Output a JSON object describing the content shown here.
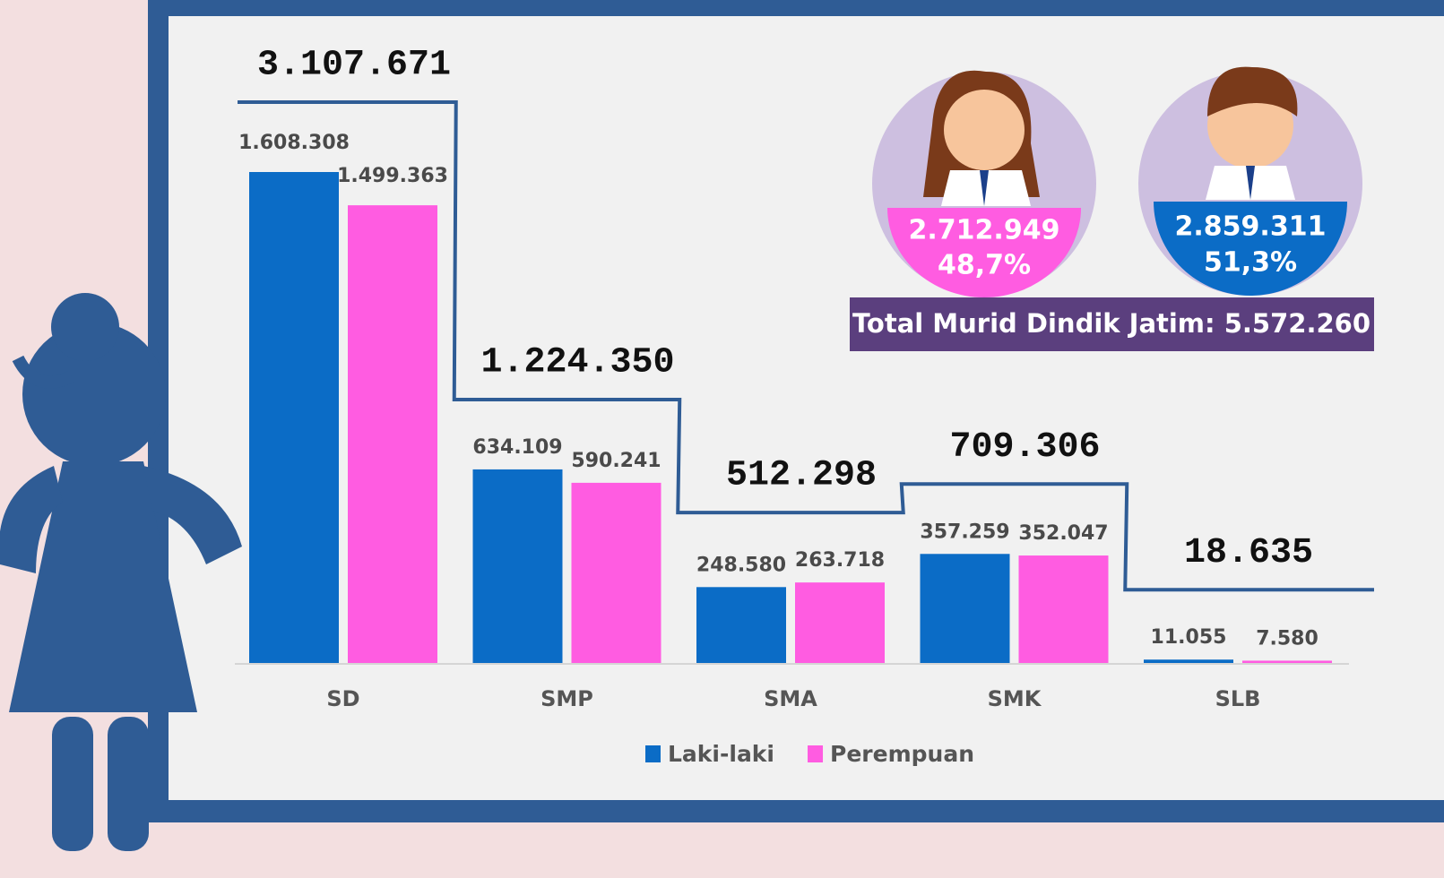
{
  "chart_data": {
    "type": "bar",
    "categories": [
      "SD",
      "SMP",
      "SMA",
      "SMK",
      "SLB"
    ],
    "series": [
      {
        "name": "Laki-laki",
        "color": "#0b6cc6",
        "values": [
          1608308,
          634109,
          248580,
          357259,
          11055
        ],
        "value_labels": [
          "1.608.308",
          "634.109",
          "248.580",
          "357.259",
          "11.055"
        ]
      },
      {
        "name": "Perempuan",
        "color": "#ff5ce1",
        "values": [
          1499363,
          590241,
          263718,
          352047,
          7580
        ],
        "value_labels": [
          "1.499.363",
          "590.241",
          "263.718",
          "352.047",
          "7.580"
        ]
      }
    ],
    "totals": [
      3107671,
      1224350,
      512298,
      709306,
      18635
    ],
    "total_labels": [
      "3.107.671",
      "1.224.350",
      "512.298",
      "709.306",
      "18.635"
    ],
    "legend": "bottom"
  },
  "summary": {
    "female": {
      "count": "2.712.949",
      "percent": "48,7%"
    },
    "male": {
      "count": "2.859.311",
      "percent": "51,3%"
    },
    "total": "Total Murid Dindik Jatim: 5.572.260"
  }
}
